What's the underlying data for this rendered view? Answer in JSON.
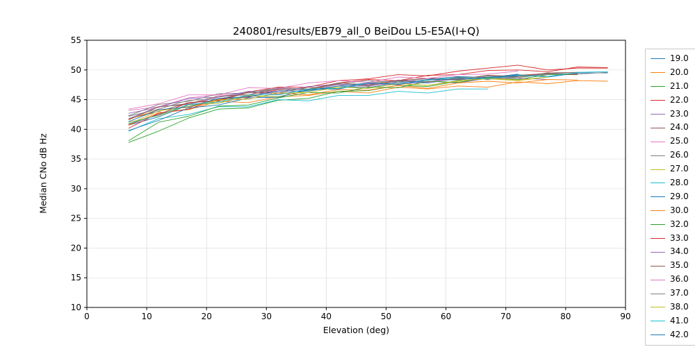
{
  "chart_data": {
    "type": "line",
    "title": "240801/results/EB79_all_0 BeiDou L5-E5A(I+Q)",
    "xlabel": "Elevation (deg)",
    "ylabel": "Median CNo dB Hz",
    "xlim": [
      0,
      90
    ],
    "ylim": [
      10,
      55
    ],
    "xticks": [
      0,
      10,
      20,
      30,
      40,
      50,
      60,
      70,
      80,
      90
    ],
    "yticks": [
      10,
      15,
      20,
      25,
      30,
      35,
      40,
      45,
      50,
      55
    ],
    "grid": true,
    "legend_position": "right-outside",
    "series": [
      {
        "name": "19.0",
        "color": "#1f77b4",
        "x_start": 7,
        "x_step": 5,
        "y": [
          40.7,
          42.1,
          44.1,
          44.4,
          45.6,
          45.5,
          46.6,
          47.3,
          47.0,
          47.9,
          47.8,
          48.6,
          48.5,
          49.2,
          48.8,
          49.5,
          49.5
        ]
      },
      {
        "name": "20.0",
        "color": "#ff7f0e",
        "x_start": 7,
        "x_step": 5,
        "y": [
          40.7,
          42.8,
          43.3,
          44.7,
          44.5,
          45.5,
          45.7,
          46.4,
          46.1,
          47.1,
          46.8,
          47.3,
          47.1,
          48.0,
          47.7,
          48.2,
          48.1
        ]
      },
      {
        "name": "21.0",
        "color": "#2ca02c",
        "x_start": 7,
        "x_step": 5,
        "y": [
          37.8,
          39.7,
          41.9,
          43.4,
          43.6,
          44.9,
          45.2,
          46.4,
          46.5,
          47.4,
          47.2,
          48.1,
          48.7,
          48.4,
          49.2,
          49.2
        ]
      },
      {
        "name": "22.0",
        "color": "#d62728",
        "x_start": 7,
        "x_step": 5,
        "y": [
          40.2,
          42.7,
          43.4,
          45.1,
          45.4,
          46.7,
          46.8,
          47.8,
          48.4,
          48.2,
          49.1,
          49.2,
          49.9,
          50.0,
          49.7,
          50.5,
          50.4
        ]
      },
      {
        "name": "23.0",
        "color": "#9467bd",
        "x_start": 7,
        "x_step": 5,
        "y": [
          41.8,
          43.8,
          44.2,
          45.4,
          46.2,
          45.9,
          46.8,
          46.8,
          47.7,
          47.5,
          48.1,
          47.8,
          48.6,
          48.6,
          48.4
        ]
      },
      {
        "name": "24.0",
        "color": "#8c564b",
        "x_start": 7,
        "x_step": 5,
        "y": [
          41.8,
          43.0,
          44.5,
          44.8,
          46.2,
          46.1,
          47.1,
          46.8,
          47.8,
          48.2,
          48.0,
          48.8,
          48.4,
          49.1,
          49.4,
          49.2
        ]
      },
      {
        "name": "25.0",
        "color": "#e377c2",
        "x_start": 7,
        "x_step": 5,
        "y": [
          43.2,
          43.8,
          45.3,
          45.8,
          45.8,
          46.9,
          46.7,
          47.5,
          47.2,
          48.1,
          47.9,
          48.5,
          48.6,
          48.9
        ]
      },
      {
        "name": "26.0",
        "color": "#7f7f7f",
        "x_start": 7,
        "x_step": 5,
        "y": [
          42.3,
          44.2,
          44.7,
          46.0,
          46.1,
          47.0,
          46.8,
          47.7,
          48.2,
          47.9,
          48.6,
          48.5,
          49.0,
          48.7,
          49.5,
          49.3,
          49.6
        ]
      },
      {
        "name": "27.0",
        "color": "#bcbd22",
        "x_start": 7,
        "x_step": 5,
        "y": [
          41.2,
          42.3,
          44.1,
          44.4,
          45.7,
          45.5,
          46.5,
          47.1,
          46.9,
          47.7,
          47.4,
          48.1,
          48.6,
          48.3,
          48.8
        ]
      },
      {
        "name": "28.0",
        "color": "#17becf",
        "x_start": 7,
        "x_step": 5,
        "y": [
          39.7,
          41.8,
          42.5,
          43.8,
          43.8,
          45.0,
          44.8,
          45.7,
          45.7,
          46.4,
          46.1,
          46.8,
          46.8
        ]
      },
      {
        "name": "29.0",
        "color": "#1f77b4",
        "x_start": 7,
        "x_step": 5,
        "y": [
          39.8,
          41.5,
          43.6,
          44.1,
          45.3,
          45.4,
          46.7,
          46.8,
          47.8,
          47.6,
          48.4,
          48.9,
          48.7,
          49.3
        ]
      },
      {
        "name": "30.0",
        "color": "#ff7f0e",
        "x_start": 7,
        "x_step": 5,
        "y": [
          41.7,
          43.3,
          43.7,
          44.9,
          45.1,
          46.1,
          45.8,
          46.7,
          46.6,
          47.4,
          46.9,
          47.8,
          48.1,
          47.8,
          48.4,
          48.3
        ]
      },
      {
        "name": "32.0",
        "color": "#2ca02c",
        "x_start": 7,
        "x_step": 5,
        "y": [
          38.1,
          41.2,
          42.2,
          43.9,
          44.1,
          45.3,
          46.2,
          46.1,
          47.1,
          47.0,
          48.1,
          47.9,
          48.7,
          48.9,
          49.3
        ]
      },
      {
        "name": "33.0",
        "color": "#d62728",
        "x_start": 7,
        "x_step": 5,
        "y": [
          40.8,
          42.5,
          44.5,
          44.9,
          46.3,
          47.1,
          47.1,
          48.2,
          48.5,
          49.2,
          49.0,
          49.8,
          50.3,
          50.8,
          50.0,
          50.3,
          50.3
        ]
      },
      {
        "name": "34.0",
        "color": "#9467bd",
        "x_start": 7,
        "x_step": 5,
        "y": [
          42.7,
          43.7,
          45.2,
          45.4,
          46.4,
          46.3,
          47.2,
          47.6,
          47.4,
          48.3,
          48.0,
          48.7,
          48.5,
          49.0,
          49.2
        ]
      },
      {
        "name": "35.0",
        "color": "#8c564b",
        "x_start": 7,
        "x_step": 5,
        "y": [
          41.6,
          43.8,
          44.3,
          45.6,
          45.8,
          46.8,
          46.7,
          47.8,
          47.5,
          48.2,
          48.6,
          48.4,
          49.1,
          48.9,
          49.5,
          49.6
        ]
      },
      {
        "name": "36.0",
        "color": "#e377c2",
        "x_start": 7,
        "x_step": 5,
        "y": [
          43.4,
          44.3,
          45.8,
          45.8,
          47.0,
          46.9,
          47.8,
          48.2,
          47.9,
          48.8,
          48.6,
          49.2,
          49.3,
          49.8
        ]
      },
      {
        "name": "37.0",
        "color": "#7f7f7f",
        "x_start": 7,
        "x_step": 5,
        "y": [
          42.2,
          43.4,
          44.9,
          45.1,
          46.2,
          46.8,
          46.7,
          47.6,
          47.3,
          48.1,
          48.0,
          48.7,
          48.8,
          48.7,
          49.3,
          49.4
        ]
      },
      {
        "name": "38.0",
        "color": "#bcbd22",
        "x_start": 7,
        "x_step": 5,
        "y": [
          40.9,
          43.1,
          43.8,
          45.0,
          45.1,
          46.1,
          46.2,
          47.1,
          46.9,
          47.7,
          47.4,
          48.2,
          48.5,
          48.2,
          48.8
        ]
      },
      {
        "name": "41.0",
        "color": "#17becf",
        "x_start": 7,
        "x_step": 5,
        "y": [
          41.0,
          42.4,
          44.2,
          44.6,
          45.8,
          45.8,
          46.8,
          46.9,
          47.8,
          47.6,
          48.3,
          48.7,
          48.5,
          49.1,
          48.9,
          49.6,
          49.7
        ]
      },
      {
        "name": "42.0",
        "color": "#1f77b4",
        "x_start": 7,
        "x_step": 5,
        "y": [
          41.3,
          43.3,
          43.8,
          45.2,
          45.5,
          46.5,
          46.4,
          47.3,
          47.8,
          47.6,
          48.4,
          48.3,
          48.8,
          49.0
        ]
      }
    ]
  }
}
